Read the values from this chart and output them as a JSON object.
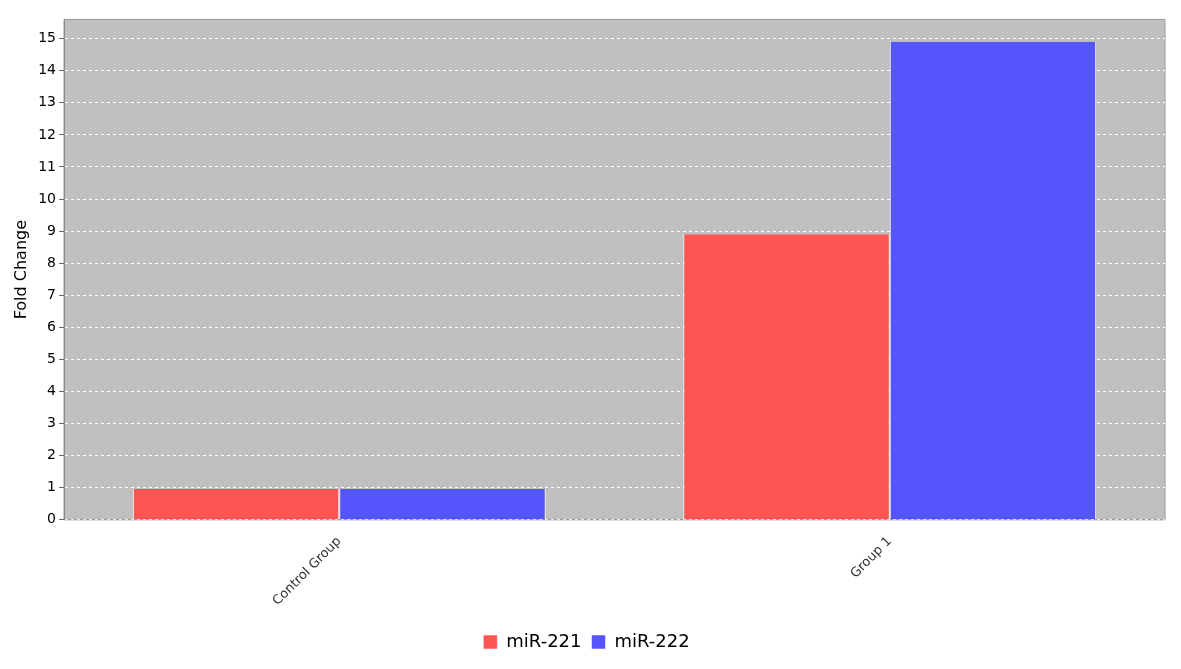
{
  "chart_data": {
    "type": "bar",
    "ylabel": "Fold Change",
    "categories": [
      "Control Group",
      "Group 1"
    ],
    "series": [
      {
        "name": "miR-221",
        "color": "#ff5555",
        "values": [
          0.96,
          8.9
        ]
      },
      {
        "name": "miR-222",
        "color": "#5555ff",
        "values": [
          0.96,
          14.9
        ]
      }
    ],
    "ylim": [
      0,
      15.6
    ],
    "yticks": [
      0,
      1,
      2,
      3,
      4,
      5,
      6,
      7,
      8,
      9,
      10,
      11,
      12,
      13,
      14,
      15
    ],
    "grid": "y",
    "legend": "bottom"
  }
}
